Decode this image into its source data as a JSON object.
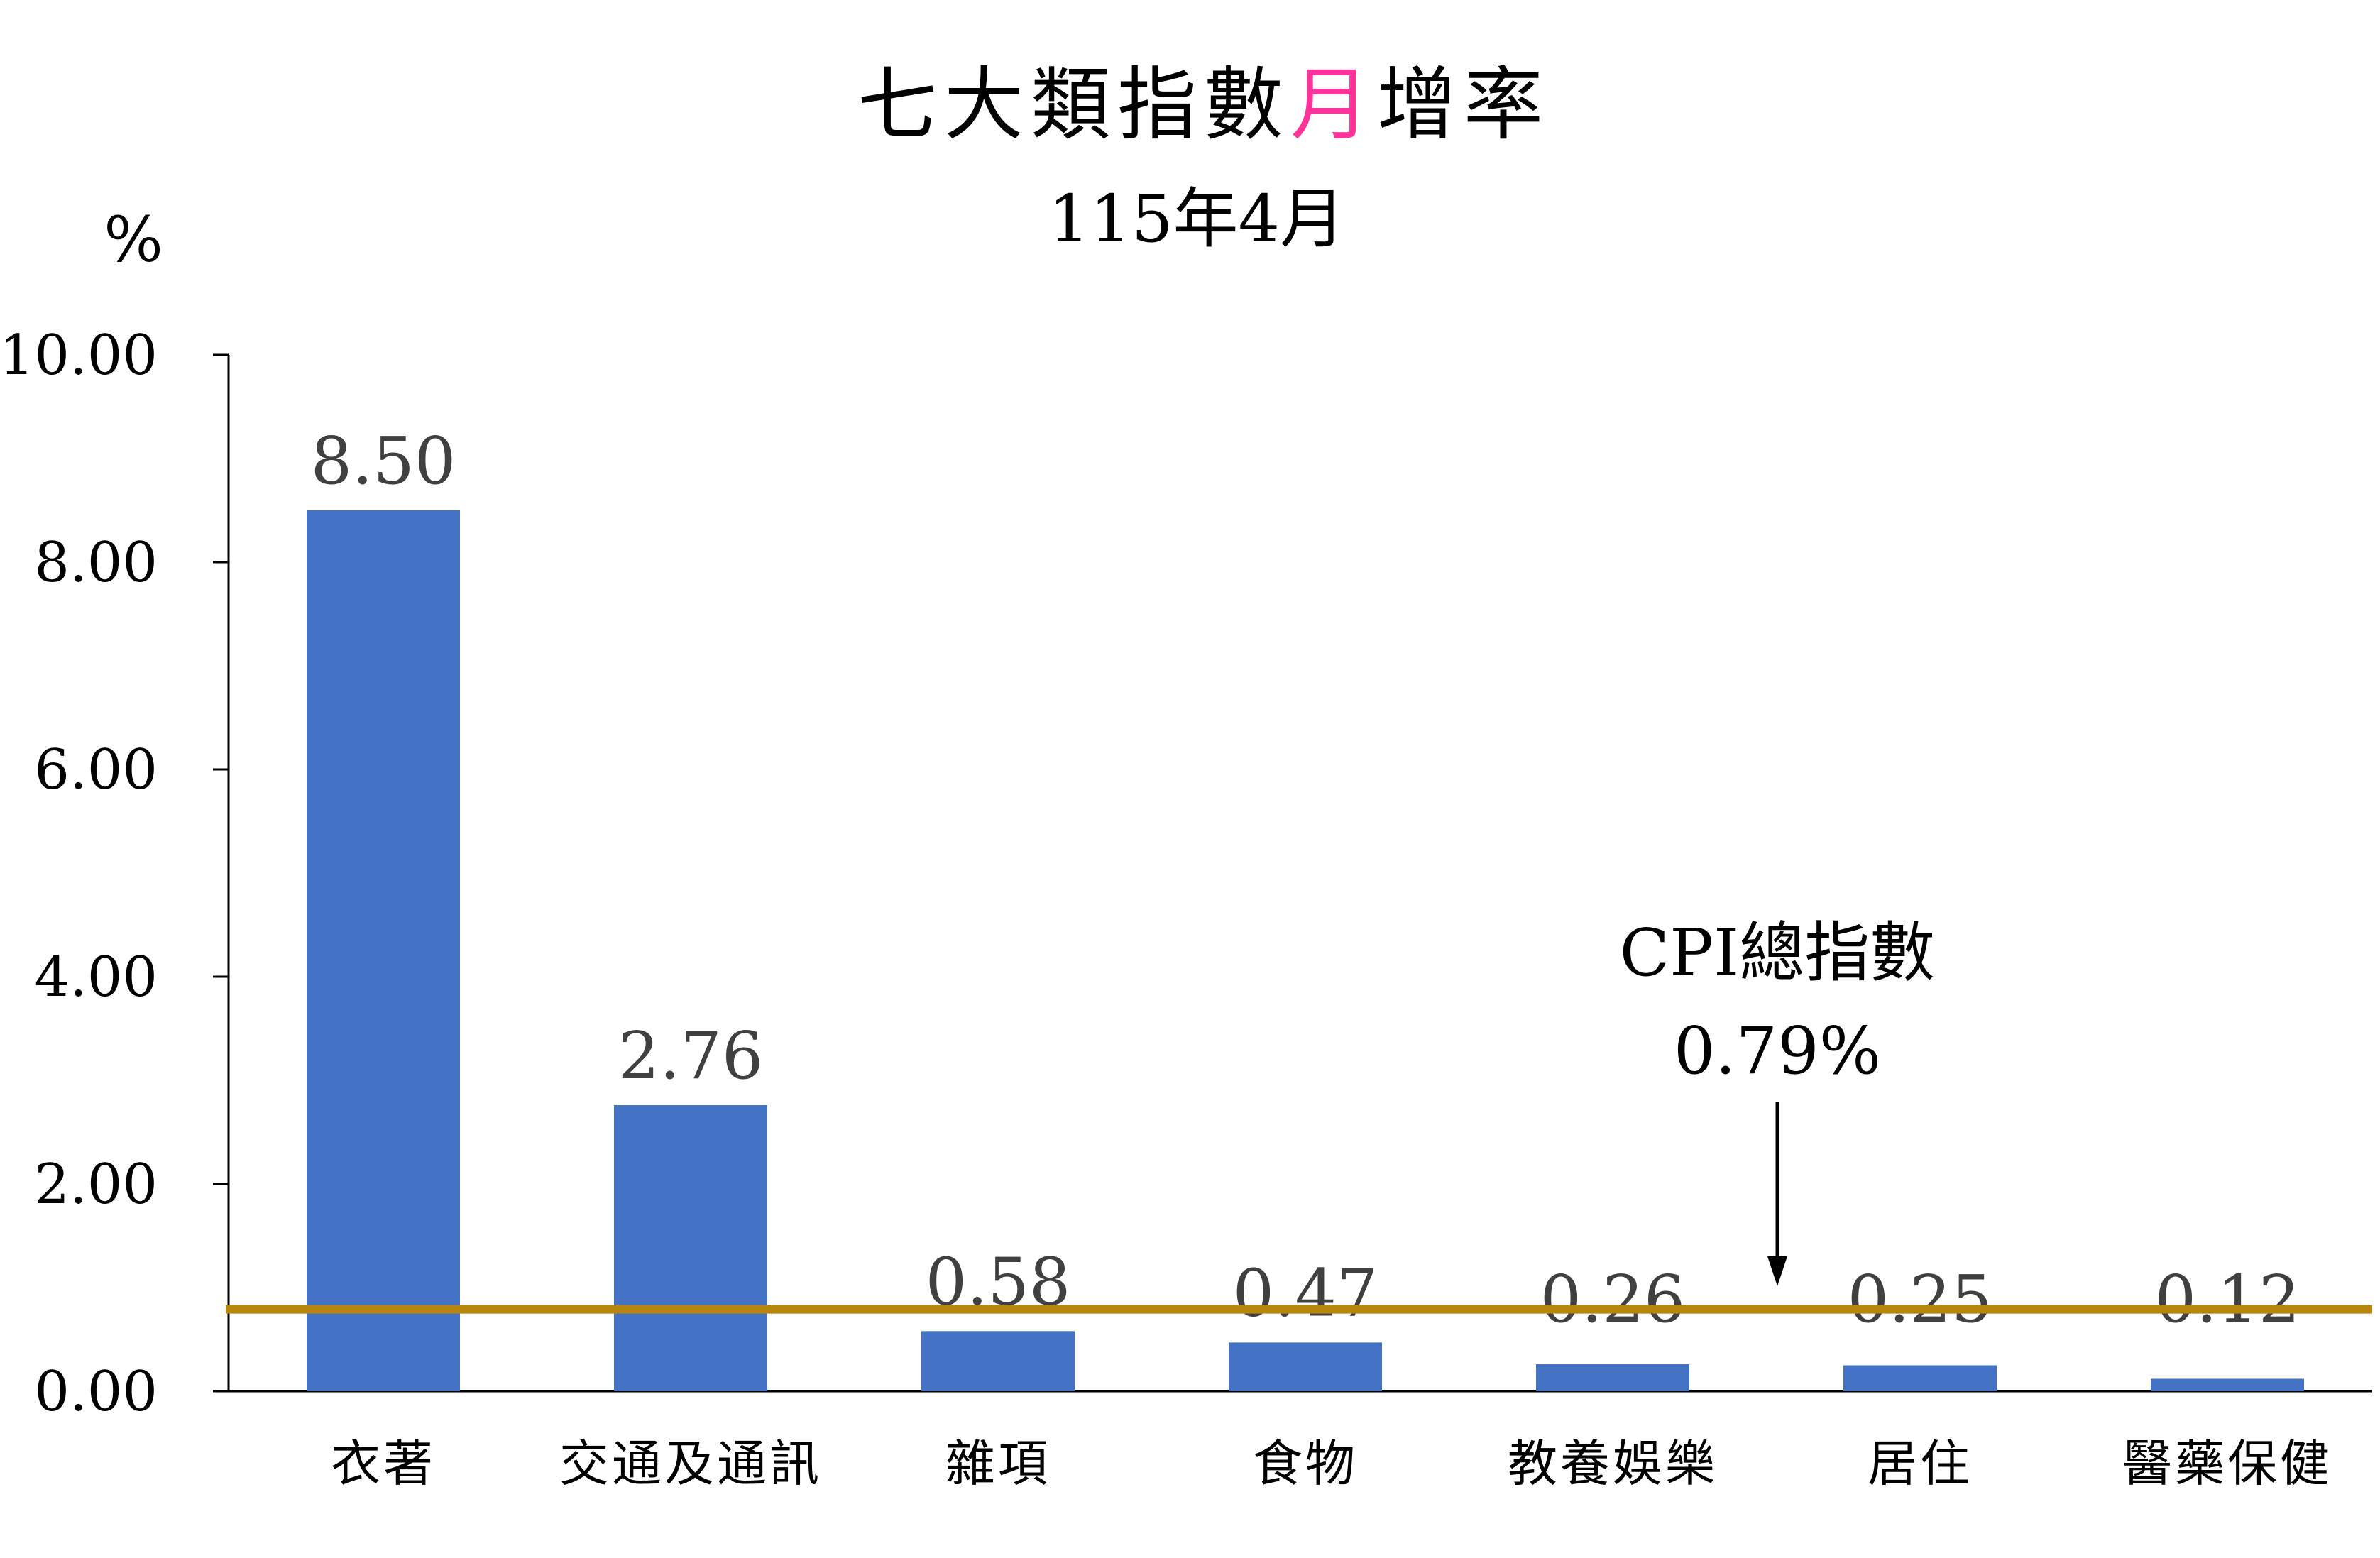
{
  "chart_data": {
    "type": "bar",
    "title": {
      "before": "七大類指數",
      "highlight": "月",
      "after": "增率",
      "highlight_color": "#FF3399"
    },
    "subtitle": "115年4月",
    "ylabel": "%",
    "xlabel": "",
    "ylim": [
      0,
      10
    ],
    "yticks": [
      "0.00",
      "2.00",
      "4.00",
      "6.00",
      "8.00",
      "10.00"
    ],
    "ytick_values": [
      0,
      2,
      4,
      6,
      8,
      10
    ],
    "categories": [
      "衣著",
      "交通及通訊",
      "雜項",
      "食物",
      "教養娛樂",
      "居住",
      "醫藥保健"
    ],
    "values": [
      8.5,
      2.76,
      0.58,
      0.47,
      0.26,
      0.25,
      0.12
    ],
    "value_labels": [
      "8.50",
      "2.76",
      "0.58",
      "0.47",
      "0.26",
      "0.25",
      "0.12"
    ],
    "bar_color": "#4472C4",
    "reference_line": {
      "value": 0.79,
      "label_line1": "CPI總指數",
      "label_line2": "0.79%",
      "color": "#B8860B"
    },
    "grid": false,
    "legend": "none"
  }
}
